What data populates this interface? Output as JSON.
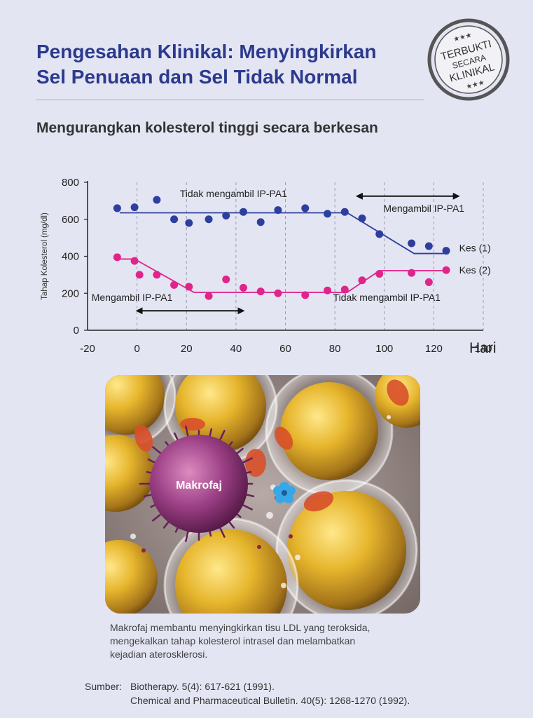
{
  "title_lines": [
    "Pengesahan Klinikal: Menyingkirkan",
    "Sel Penuaan dan Sel Tidak Normal"
  ],
  "stamp": {
    "line1": "TERBUKTI",
    "line2": "SECARA",
    "line3": "KLINIKAL",
    "stars": "★★★"
  },
  "subtitle": "Mengurangkan kolesterol tinggi secara berkesan",
  "chart_data": {
    "type": "scatter",
    "ylabel": "Tahap Kolesterol (mg/dl)",
    "xlabel": "Hari",
    "xlim": [
      -20,
      140
    ],
    "ylim": [
      0,
      800
    ],
    "x_ticks": [
      "-20",
      "0",
      "20",
      "40",
      "60",
      "80",
      "100",
      "120",
      "140"
    ],
    "y_ticks": [
      "0",
      "200",
      "400",
      "600",
      "800"
    ],
    "grid": "vertical-dashed",
    "series": [
      {
        "name": "Kes (1)",
        "color": "#2d3f9e",
        "points": [
          [
            -8,
            660
          ],
          [
            -1,
            665
          ],
          [
            8,
            705
          ],
          [
            15,
            600
          ],
          [
            21,
            580
          ],
          [
            29,
            600
          ],
          [
            36,
            620
          ],
          [
            43,
            640
          ],
          [
            50,
            585
          ],
          [
            57,
            650
          ],
          [
            68,
            660
          ],
          [
            77,
            630
          ],
          [
            84,
            640
          ],
          [
            91,
            605
          ],
          [
            98,
            520
          ],
          [
            111,
            470
          ],
          [
            118,
            455
          ],
          [
            125,
            430
          ]
        ],
        "trend": [
          [
            -7,
            635
          ],
          [
            85,
            635
          ],
          [
            112,
            415
          ],
          [
            126,
            415
          ]
        ]
      },
      {
        "name": "Kes (2)",
        "color": "#e0248a",
        "points": [
          [
            -8,
            395
          ],
          [
            -1,
            375
          ],
          [
            1,
            300
          ],
          [
            8,
            300
          ],
          [
            15,
            245
          ],
          [
            21,
            235
          ],
          [
            29,
            185
          ],
          [
            36,
            275
          ],
          [
            43,
            230
          ],
          [
            50,
            210
          ],
          [
            57,
            200
          ],
          [
            68,
            190
          ],
          [
            77,
            215
          ],
          [
            84,
            220
          ],
          [
            91,
            270
          ],
          [
            98,
            305
          ],
          [
            111,
            310
          ],
          [
            118,
            260
          ],
          [
            125,
            325
          ]
        ],
        "trend": [
          [
            -7,
            385
          ],
          [
            -1,
            385
          ],
          [
            23,
            205
          ],
          [
            85,
            205
          ],
          [
            98,
            322
          ],
          [
            126,
            322
          ]
        ]
      }
    ],
    "annotations": [
      {
        "text": "Tidak mengambil IP-PA1",
        "anchor": [
          39,
          720
        ]
      },
      {
        "text": "Mengambil IP-PA1",
        "anchor": [
          116,
          640
        ]
      },
      {
        "text": "Mengambil IP-PA1",
        "anchor": [
          -2,
          160
        ]
      },
      {
        "text": "Tidak mengambil IP-PA1",
        "anchor": [
          101,
          160
        ]
      }
    ],
    "arrows": [
      {
        "from": 89,
        "to": 130,
        "y": 725
      },
      {
        "from": 0,
        "to": 43,
        "y": 105
      }
    ]
  },
  "illustration": {
    "label": "Makrofaj"
  },
  "caption_lines": [
    "Makrofaj membantu menyingkirkan tisu LDL yang teroksida,",
    "mengekalkan tahap kolesterol intrasel dan melambatkan",
    "kejadian aterosklerosi."
  ],
  "source": {
    "label": "Sumber:",
    "refs": [
      "Biotherapy. 5(4): 617-621 (1991).",
      "Chemical and Pharmaceutical Bulletin. 40(5): 1268-1270 (1992)."
    ]
  }
}
